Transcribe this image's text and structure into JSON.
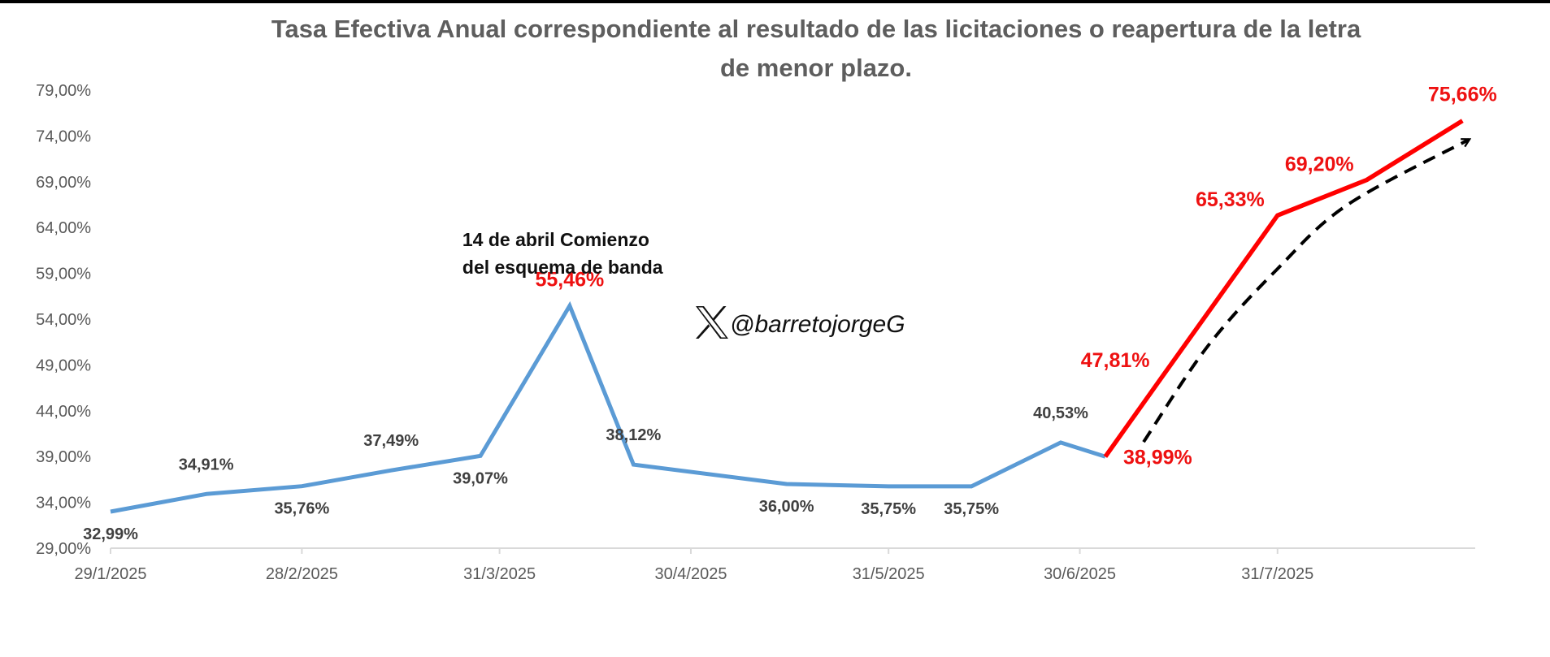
{
  "colors": {
    "series_blue": "#5b9bd5",
    "series_red": "#ff0000",
    "highlight_label": "#ee1111",
    "label_dark": "#404040",
    "axis": "#d9d9d9",
    "tick_text": "#595959",
    "title": "#5e5e5e",
    "trend_arrow": "#000000"
  },
  "watermark": {
    "icon": "x-logo-icon",
    "handle": "@barretojorgeG"
  },
  "chart_data": {
    "type": "line",
    "title_lines": [
      "Tasa Efectiva Anual correspondiente al resultado de las  licitaciones o reapertura de la letra",
      "de menor plazo."
    ],
    "xlabel": "",
    "ylabel": "",
    "x_axis": {
      "type": "date",
      "range": [
        "2025-01-29",
        "2025-08-31"
      ],
      "ticks": [
        "2025-01-29",
        "2025-02-28",
        "2025-03-31",
        "2025-04-30",
        "2025-05-31",
        "2025-06-30",
        "2025-07-31"
      ],
      "tick_labels": [
        "29/1/2025",
        "28/2/2025",
        "31/3/2025",
        "30/4/2025",
        "31/5/2025",
        "30/6/2025",
        "31/7/2025"
      ]
    },
    "y_axis": {
      "range": [
        29,
        79
      ],
      "ticks": [
        29,
        34,
        39,
        44,
        49,
        54,
        59,
        64,
        69,
        74,
        79
      ],
      "tick_labels": [
        "29,00%",
        "34,00%",
        "39,00%",
        "44,00%",
        "49,00%",
        "54,00%",
        "59,00%",
        "64,00%",
        "69,00%",
        "74,00%",
        "79,00%"
      ]
    },
    "grid": false,
    "legend": "none",
    "series": [
      {
        "color": "#5b9bd5",
        "points": [
          {
            "x": "2025-01-29",
            "y": 32.99,
            "label": "32,99%",
            "label_pos": "below"
          },
          {
            "x": "2025-02-13",
            "y": 34.91,
            "label": "34,91%",
            "label_pos": "above"
          },
          {
            "x": "2025-02-28",
            "y": 35.76,
            "label": "35,76%",
            "label_pos": "below"
          },
          {
            "x": "2025-03-14",
            "y": 37.49,
            "label": "37,49%",
            "label_pos": "above"
          },
          {
            "x": "2025-03-28",
            "y": 39.07,
            "label": "39,07%",
            "label_pos": "below"
          },
          {
            "x": "2025-04-11",
            "y": 55.46,
            "label": "55,46%",
            "label_pos": "above",
            "highlight": true
          },
          {
            "x": "2025-04-21",
            "y": 38.12,
            "label": "38,12%",
            "label_pos": "above"
          },
          {
            "x": "2025-05-15",
            "y": 36.0,
            "label": "36,00%",
            "label_pos": "below"
          },
          {
            "x": "2025-05-31",
            "y": 35.75,
            "label": "35,75%",
            "label_pos": "below"
          },
          {
            "x": "2025-06-13",
            "y": 35.75,
            "label": "35,75%",
            "label_pos": "below"
          },
          {
            "x": "2025-06-27",
            "y": 40.53,
            "label": "40,53%",
            "label_pos": "above"
          },
          {
            "x": "2025-07-04",
            "y": 38.99,
            "label": "",
            "label_pos": "none"
          }
        ]
      },
      {
        "color": "#ff0000",
        "points": [
          {
            "x": "2025-07-04",
            "y": 38.99,
            "label": "38,99%",
            "label_pos": "below-right",
            "highlight": true
          },
          {
            "x": "2025-07-13",
            "y": 47.81,
            "label": "47,81%",
            "label_pos": "above-left",
            "highlight": true
          },
          {
            "x": "2025-07-31",
            "y": 65.33,
            "label": "65,33%",
            "label_pos": "above-left",
            "highlight": true
          },
          {
            "x": "2025-08-14",
            "y": 69.2,
            "label": "69,20%",
            "label_pos": "above-left",
            "highlight": true
          },
          {
            "x": "2025-08-29",
            "y": 75.66,
            "label": "75,66%",
            "label_pos": "above",
            "highlight": true
          }
        ]
      }
    ],
    "trend_arrow": {
      "style": "dashed",
      "color": "#000000",
      "points": [
        {
          "x": "2025-07-10",
          "y": 40.6
        },
        {
          "x": "2025-07-20",
          "y": 51.0
        },
        {
          "x": "2025-07-31",
          "y": 59.5
        },
        {
          "x": "2025-08-11",
          "y": 66.5
        },
        {
          "x": "2025-08-30",
          "y": 73.6
        }
      ]
    },
    "annotations": [
      {
        "lines": [
          "14 de abril Comienzo",
          "del esquema de banda"
        ],
        "x": "2025-04-11",
        "y": 62.0
      }
    ]
  }
}
